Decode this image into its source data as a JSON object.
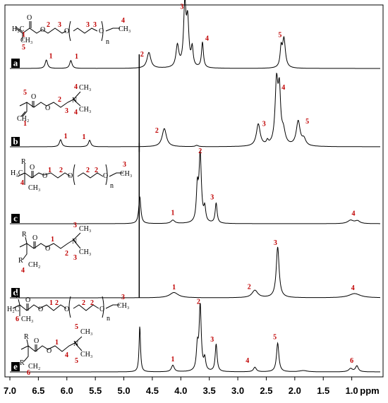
{
  "chart_data": {
    "type": "line",
    "title": "",
    "xlabel": "ppm",
    "xlim": [
      7.0,
      0.5
    ],
    "x_reversed": true,
    "xticks": [
      "7.0",
      "6.5",
      "6.0",
      "5.5",
      "5.0",
      "4.5",
      "4.0",
      "3.5",
      "3.0",
      "2.5",
      "2.0",
      "1.5",
      "1.0"
    ],
    "grid": false,
    "legend": "none",
    "line_color": "#000000",
    "label_color": "#c00000",
    "panels": [
      {
        "letter": "a",
        "peaks": [
          {
            "x": 6.36,
            "h": 0.14,
            "w": 0.025
          },
          {
            "x": 5.93,
            "h": 0.13,
            "w": 0.025
          },
          {
            "x": 4.56,
            "h": 0.26,
            "w": 0.04
          },
          {
            "x": 4.06,
            "h": 0.36,
            "w": 0.03
          },
          {
            "x": 3.93,
            "h": 1.0,
            "w": 0.025
          },
          {
            "x": 3.88,
            "h": 0.72,
            "w": 0.025
          },
          {
            "x": 3.8,
            "h": 0.3,
            "w": 0.02
          },
          {
            "x": 3.62,
            "h": 0.42,
            "w": 0.02
          },
          {
            "x": 2.19,
            "h": 0.48,
            "w": 0.03
          },
          {
            "x": 2.24,
            "h": 0.3,
            "w": 0.02
          }
        ],
        "labels": [
          {
            "x": 6.28,
            "h": 0.17,
            "text": "1"
          },
          {
            "x": 5.83,
            "h": 0.16,
            "text": "1"
          },
          {
            "x": 4.68,
            "h": 0.2,
            "text": "2"
          },
          {
            "x": 3.98,
            "h": 0.98,
            "text": "3"
          },
          {
            "x": 3.54,
            "h": 0.46,
            "text": "4"
          },
          {
            "x": 2.26,
            "h": 0.52,
            "text": "5"
          }
        ]
      },
      {
        "letter": "b",
        "peaks": [
          {
            "x": 6.11,
            "h": 0.11,
            "w": 0.025
          },
          {
            "x": 5.6,
            "h": 0.1,
            "w": 0.025
          },
          {
            "x": 4.29,
            "h": 0.28,
            "w": 0.045
          },
          {
            "x": 3.72,
            "h": 0.02,
            "w": 0.03
          },
          {
            "x": 2.64,
            "h": 0.34,
            "w": 0.04
          },
          {
            "x": 2.48,
            "h": 0.06,
            "w": 0.02
          },
          {
            "x": 2.32,
            "h": 0.95,
            "w": 0.03
          },
          {
            "x": 2.27,
            "h": 0.75,
            "w": 0.025
          },
          {
            "x": 2.2,
            "h": 0.2,
            "w": 0.04
          },
          {
            "x": 1.94,
            "h": 0.38,
            "w": 0.04
          },
          {
            "x": 1.84,
            "h": 0.1,
            "w": 0.04
          }
        ],
        "spikes": [
          {
            "x": 4.73,
            "top": 0.06,
            "bottom": -0.08
          }
        ],
        "labels": [
          {
            "x": 6.02,
            "h": 0.13,
            "text": "1"
          },
          {
            "x": 5.7,
            "h": 0.12,
            "text": "1"
          },
          {
            "x": 4.42,
            "h": 0.22,
            "text": "2"
          },
          {
            "x": 2.54,
            "h": 0.32,
            "text": "3"
          },
          {
            "x": 2.2,
            "h": 0.88,
            "text": "4"
          },
          {
            "x": 1.78,
            "h": 0.36,
            "text": "5"
          }
        ]
      },
      {
        "letter": "c",
        "peaks": [
          {
            "x": 4.72,
            "h": 0.4,
            "w": 0.022
          },
          {
            "x": 4.14,
            "h": 0.05,
            "w": 0.04
          },
          {
            "x": 3.66,
            "h": 1.0,
            "w": 0.025
          },
          {
            "x": 3.71,
            "h": 0.48,
            "w": 0.02
          },
          {
            "x": 3.58,
            "h": 0.2,
            "w": 0.02
          },
          {
            "x": 3.38,
            "h": 0.3,
            "w": 0.02
          },
          {
            "x": 1.02,
            "h": 0.05,
            "w": 0.06
          },
          {
            "x": 0.9,
            "h": 0.04,
            "w": 0.05
          }
        ],
        "labels": [
          {
            "x": 4.14,
            "h": 0.13,
            "text": "1"
          },
          {
            "x": 3.66,
            "h": 1.04,
            "text": "2"
          },
          {
            "x": 3.45,
            "h": 0.36,
            "text": "3"
          },
          {
            "x": 0.97,
            "h": 0.12,
            "text": "4"
          }
        ]
      },
      {
        "letter": "d",
        "peaks": [
          {
            "x": 4.12,
            "h": 0.1,
            "w": 0.09
          },
          {
            "x": 2.7,
            "h": 0.14,
            "w": 0.06
          },
          {
            "x": 2.3,
            "h": 0.96,
            "w": 0.03
          },
          {
            "x": 0.95,
            "h": 0.08,
            "w": 0.12
          }
        ],
        "spikes": [
          {
            "x": 4.73,
            "top": 4.6,
            "bottom": 0
          }
        ],
        "labels": [
          {
            "x": 4.12,
            "h": 0.16,
            "text": "1"
          },
          {
            "x": 2.8,
            "h": 0.17,
            "text": "2"
          },
          {
            "x": 2.34,
            "h": 1.0,
            "text": "3"
          },
          {
            "x": 0.98,
            "h": 0.15,
            "text": "4"
          }
        ]
      },
      {
        "letter": "e",
        "peaks": [
          {
            "x": 4.72,
            "h": 0.7,
            "w": 0.015
          },
          {
            "x": 4.14,
            "h": 0.1,
            "w": 0.03
          },
          {
            "x": 3.66,
            "h": 1.0,
            "w": 0.022
          },
          {
            "x": 3.71,
            "h": 0.35,
            "w": 0.02
          },
          {
            "x": 3.58,
            "h": 0.18,
            "w": 0.02
          },
          {
            "x": 3.38,
            "h": 0.42,
            "w": 0.02
          },
          {
            "x": 2.7,
            "h": 0.07,
            "w": 0.03
          },
          {
            "x": 2.3,
            "h": 0.44,
            "w": 0.025
          },
          {
            "x": 1.85,
            "h": 0.02,
            "w": 0.08
          },
          {
            "x": 1.02,
            "h": 0.05,
            "w": 0.04
          },
          {
            "x": 0.91,
            "h": 0.09,
            "w": 0.03
          }
        ],
        "labels": [
          {
            "x": 4.14,
            "h": 0.16,
            "text": "1"
          },
          {
            "x": 3.69,
            "h": 1.04,
            "text": "2"
          },
          {
            "x": 3.45,
            "h": 0.46,
            "text": "3"
          },
          {
            "x": 2.83,
            "h": 0.14,
            "text": "4"
          },
          {
            "x": 2.35,
            "h": 0.5,
            "text": "5"
          },
          {
            "x": 1.0,
            "h": 0.14,
            "text": "6"
          }
        ]
      }
    ]
  }
}
